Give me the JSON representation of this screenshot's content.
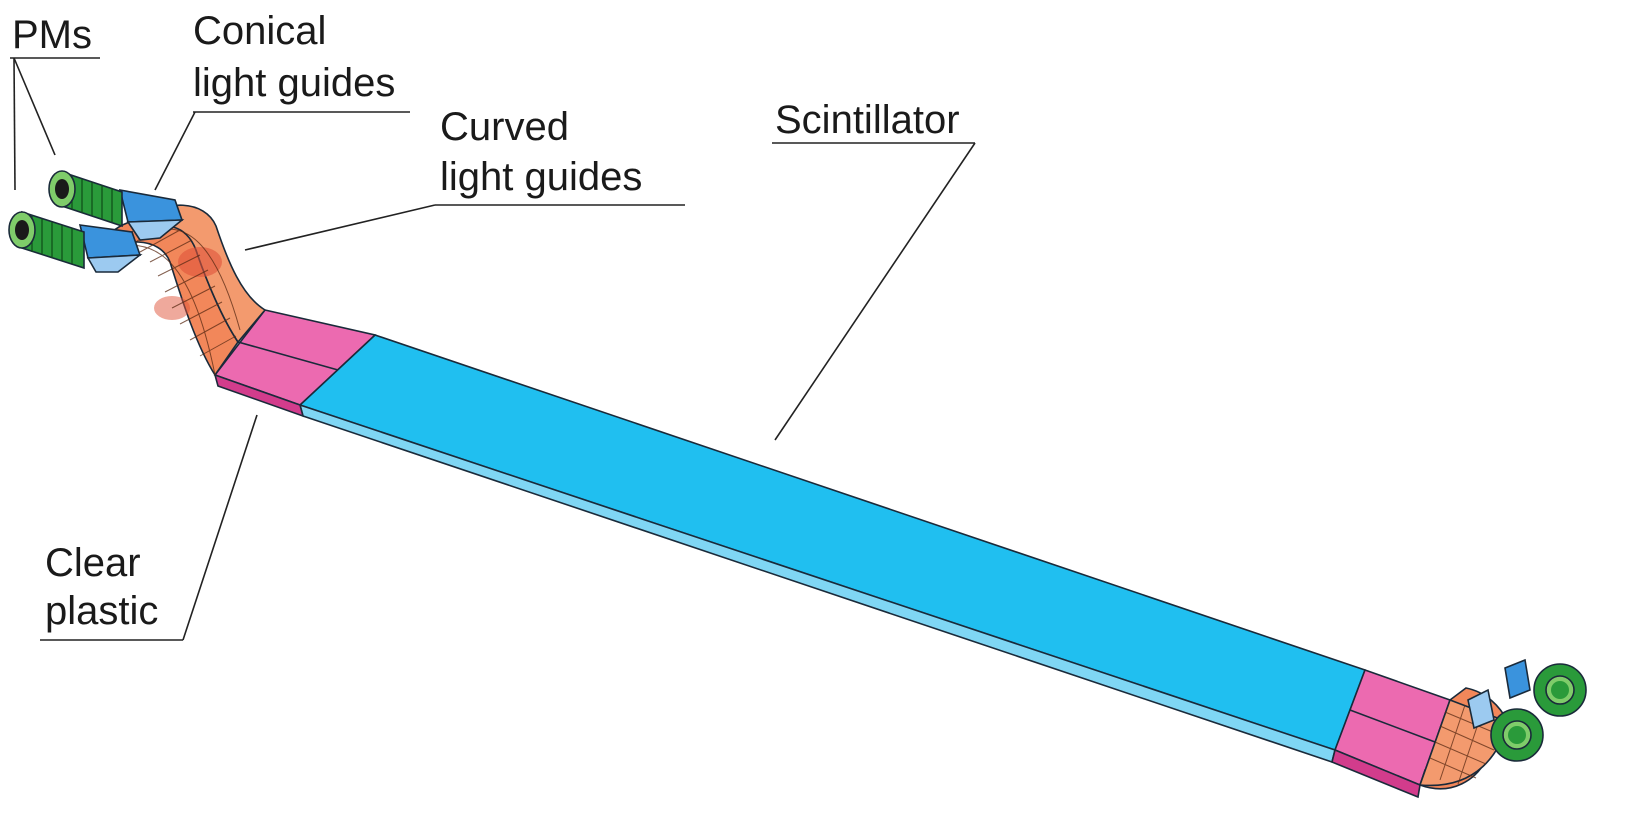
{
  "labels": {
    "pms": "PMs",
    "conical_line1": "Conical",
    "conical_line2": "light guides",
    "curved_line1": "Curved",
    "curved_line2": "light guides",
    "scintillator": "Scintillator",
    "clear_line1": "Clear",
    "clear_line2": "plastic"
  },
  "colors": {
    "scintillator": "#20bff0",
    "scintillator_side": "#7fd6f4",
    "clear_plastic": "#ec6ab0",
    "clear_plastic_side": "#d23c8c",
    "curved_guide": "#f2875a",
    "curved_guide_dark": "#e0533a",
    "conical_guide": "#3a93dd",
    "conical_guide_light": "#9ccaf0",
    "pm_body": "#2a9a3a",
    "pm_body_light": "#7fcc6a"
  }
}
